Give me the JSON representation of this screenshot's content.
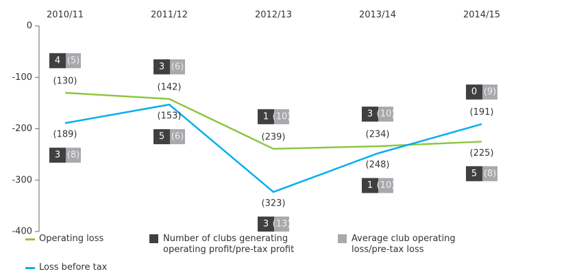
{
  "chart_data": {
    "type": "line",
    "categories": [
      "2010/11",
      "2011/12",
      "2012/13",
      "2013/14",
      "2014/15"
    ],
    "ylim": [
      -400,
      0
    ],
    "yticks": [
      0,
      -100,
      -200,
      -300,
      -400
    ],
    "series": [
      {
        "name": "Operating loss",
        "color": "#8dc63f",
        "values": [
          -130,
          -142,
          -239,
          -234,
          -225
        ],
        "value_labels": [
          "(130)",
          "(142)",
          "(239)",
          "(234)",
          "(225)"
        ],
        "clubs": [
          4,
          3,
          1,
          3,
          5
        ],
        "avg_loss": [
          5,
          6,
          10,
          10,
          8
        ],
        "avg_loss_labels": [
          "(5)",
          "(6)",
          "(10)",
          "(10)",
          "(8)"
        ]
      },
      {
        "name": "Loss before tax",
        "color": "#00aeef",
        "values": [
          -189,
          -153,
          -323,
          -248,
          -191
        ],
        "value_labels": [
          "(189)",
          "(153)",
          "(323)",
          "(248)",
          "(191)"
        ],
        "clubs": [
          3,
          5,
          3,
          1,
          0
        ],
        "avg_loss": [
          8,
          6,
          13,
          10,
          9
        ],
        "avg_loss_labels": [
          "(8)",
          "(6)",
          "(13)",
          "(10)",
          "(9)"
        ]
      }
    ],
    "box_legend": [
      {
        "name": "Number of clubs generating operating profit/pre-tax profit",
        "color": "#404040"
      },
      {
        "name": "Average club operating loss/pre-tax loss",
        "color": "#a7a9ac"
      }
    ]
  }
}
